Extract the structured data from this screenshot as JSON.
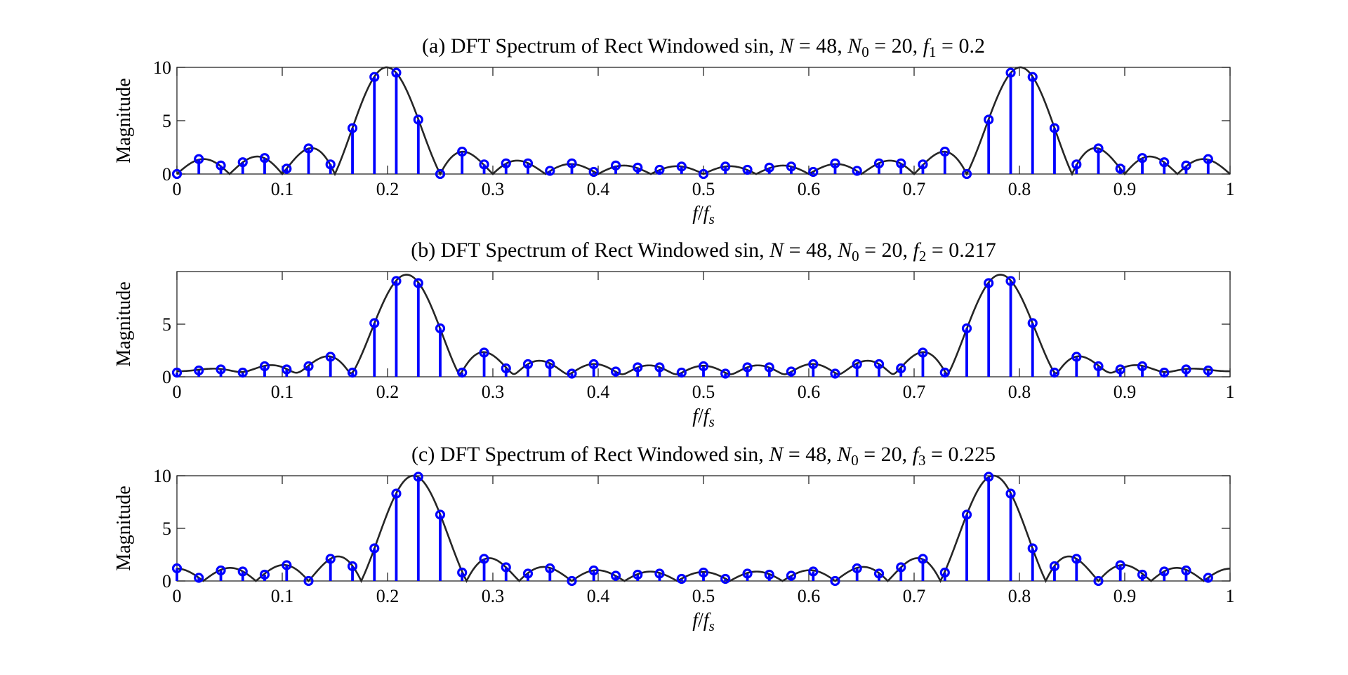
{
  "chart_data": [
    {
      "type": "line",
      "title": "(a) DFT Spectrum of Rect Windowed sin, N = 48, N0 = 20, f1 = 0.2",
      "title_parts": {
        "label": "(a) DFT Spectrum of Rect Windowed sin, ",
        "N": "48",
        "N0": "20",
        "f_sub": "1",
        "f": "0.2"
      },
      "xlabel": "f/fs",
      "ylabel": "Magnitude",
      "xlim": [
        0,
        1
      ],
      "ylim": [
        0,
        10
      ],
      "xticks": [
        "0",
        "0.1",
        "0.2",
        "0.3",
        "0.4",
        "0.5",
        "0.6",
        "0.7",
        "0.8",
        "0.9",
        "1"
      ],
      "yticks": [
        0,
        5,
        10
      ],
      "signal": {
        "N": 48,
        "N0": 20,
        "f": 0.2
      },
      "stem_x": [
        0,
        0.0208,
        0.0417,
        0.0625,
        0.0833,
        0.1042,
        0.125,
        0.1458,
        0.1667,
        0.1875,
        0.2083,
        0.2292,
        0.25,
        0.2708,
        0.2917,
        0.3125,
        0.3333,
        0.3542,
        0.375,
        0.3958,
        0.4167,
        0.4375,
        0.4583,
        0.4792,
        0.5,
        0.5208,
        0.5417,
        0.5625,
        0.5833,
        0.6042,
        0.625,
        0.6458,
        0.6667,
        0.6875,
        0.7083,
        0.7292,
        0.75,
        0.7708,
        0.7917,
        0.8125,
        0.8333,
        0.8542,
        0.875,
        0.8958,
        0.9167,
        0.9375,
        0.9583,
        0.9792
      ],
      "stem_y": [
        0,
        1.4,
        0.8,
        1.1,
        1.5,
        0.5,
        2.4,
        0.9,
        4.3,
        9.1,
        9.5,
        5.1,
        0,
        2.1,
        0.9,
        1.0,
        1.0,
        0.3,
        1.0,
        0.2,
        0.8,
        0.6,
        0.4,
        0.7,
        0,
        0.7,
        0.4,
        0.6,
        0.7,
        0.2,
        1.0,
        0.3,
        1.0,
        1.0,
        0.9,
        2.1,
        0,
        5.1,
        9.5,
        9.1,
        4.3,
        0.9,
        2.4,
        0.5,
        1.5,
        1.1,
        0.8,
        1.4
      ],
      "series": [
        {
          "name": "",
          "kind": "curve",
          "color": "#262626"
        },
        {
          "name": "",
          "kind": "stem",
          "color": "#0000ff"
        }
      ]
    },
    {
      "type": "line",
      "title": "(b) DFT Spectrum of Rect Windowed sin, N = 48, N0 = 20, f2 = 0.217",
      "title_parts": {
        "label": "(b) DFT Spectrum of Rect Windowed sin, ",
        "N": "48",
        "N0": "20",
        "f_sub": "2",
        "f": "0.217"
      },
      "xlabel": "f/fs",
      "ylabel": "Magnitude",
      "xlim": [
        0,
        1
      ],
      "ylim": [
        0,
        10
      ],
      "xticks": [
        "0",
        "0.1",
        "0.2",
        "0.3",
        "0.4",
        "0.5",
        "0.6",
        "0.7",
        "0.8",
        "0.9",
        "1"
      ],
      "yticks": [
        0,
        5
      ],
      "signal": {
        "N": 48,
        "N0": 20,
        "f": 0.217
      },
      "stem_x": [
        0,
        0.0208,
        0.0417,
        0.0625,
        0.0833,
        0.1042,
        0.125,
        0.1458,
        0.1667,
        0.1875,
        0.2083,
        0.2292,
        0.25,
        0.2708,
        0.2917,
        0.3125,
        0.3333,
        0.3542,
        0.375,
        0.3958,
        0.4167,
        0.4375,
        0.4583,
        0.4792,
        0.5,
        0.5208,
        0.5417,
        0.5625,
        0.5833,
        0.6042,
        0.625,
        0.6458,
        0.6667,
        0.6875,
        0.7083,
        0.7292,
        0.75,
        0.7708,
        0.7917,
        0.8125,
        0.8333,
        0.8542,
        0.875,
        0.8958,
        0.9167,
        0.9375,
        0.9583,
        0.9792
      ],
      "stem_y": [
        0.4,
        0.6,
        0.7,
        0.4,
        1.0,
        0.7,
        1.0,
        1.9,
        0.4,
        5.1,
        9.1,
        8.9,
        4.6,
        0.4,
        2.3,
        0.8,
        1.2,
        1.2,
        0.3,
        1.2,
        0.5,
        0.9,
        0.9,
        0.4,
        1.0,
        0.3,
        0.9,
        0.9,
        0.5,
        1.2,
        0.3,
        1.2,
        1.2,
        0.8,
        2.3,
        0.4,
        4.6,
        8.9,
        9.1,
        5.1,
        0.4,
        1.9,
        1.0,
        0.7,
        1.0,
        0.4,
        0.7,
        0.6
      ],
      "series": [
        {
          "name": "",
          "kind": "curve",
          "color": "#262626"
        },
        {
          "name": "",
          "kind": "stem",
          "color": "#0000ff"
        }
      ]
    },
    {
      "type": "line",
      "title": "(c) DFT Spectrum of Rect Windowed sin, N = 48, N0 = 20, f3 = 0.225",
      "title_parts": {
        "label": "(c) DFT Spectrum of Rect Windowed sin, ",
        "N": "48",
        "N0": "20",
        "f_sub": "3",
        "f": "0.225"
      },
      "xlabel": "f/fs",
      "ylabel": "Magnitude",
      "xlim": [
        0,
        1
      ],
      "ylim": [
        0,
        10
      ],
      "xticks": [
        "0",
        "0.1",
        "0.2",
        "0.3",
        "0.4",
        "0.5",
        "0.6",
        "0.7",
        "0.8",
        "0.9",
        "1"
      ],
      "yticks": [
        0,
        5,
        10
      ],
      "signal": {
        "N": 48,
        "N0": 20,
        "f": 0.225
      },
      "stem_x": [
        0,
        0.0208,
        0.0417,
        0.0625,
        0.0833,
        0.1042,
        0.125,
        0.1458,
        0.1667,
        0.1875,
        0.2083,
        0.2292,
        0.25,
        0.2708,
        0.2917,
        0.3125,
        0.3333,
        0.3542,
        0.375,
        0.3958,
        0.4167,
        0.4375,
        0.4583,
        0.4792,
        0.5,
        0.5208,
        0.5417,
        0.5625,
        0.5833,
        0.6042,
        0.625,
        0.6458,
        0.6667,
        0.6875,
        0.7083,
        0.7292,
        0.75,
        0.7708,
        0.7917,
        0.8125,
        0.8333,
        0.8542,
        0.875,
        0.8958,
        0.9167,
        0.9375,
        0.9583,
        0.9792
      ],
      "stem_y": [
        1.2,
        0.3,
        1.0,
        0.9,
        0.6,
        1.5,
        0,
        2.1,
        1.4,
        3.1,
        8.3,
        9.9,
        6.3,
        0.8,
        2.1,
        1.3,
        0.7,
        1.2,
        0,
        1.0,
        0.5,
        0.6,
        0.7,
        0.2,
        0.8,
        0.2,
        0.7,
        0.6,
        0.5,
        0.9,
        0,
        1.2,
        0.7,
        1.3,
        2.1,
        0.8,
        6.3,
        9.9,
        8.3,
        3.1,
        1.4,
        2.1,
        0,
        1.5,
        0.6,
        0.9,
        1.0,
        0.3
      ],
      "series": [
        {
          "name": "",
          "kind": "curve",
          "color": "#262626"
        },
        {
          "name": "",
          "kind": "stem",
          "color": "#0000ff"
        }
      ]
    }
  ]
}
